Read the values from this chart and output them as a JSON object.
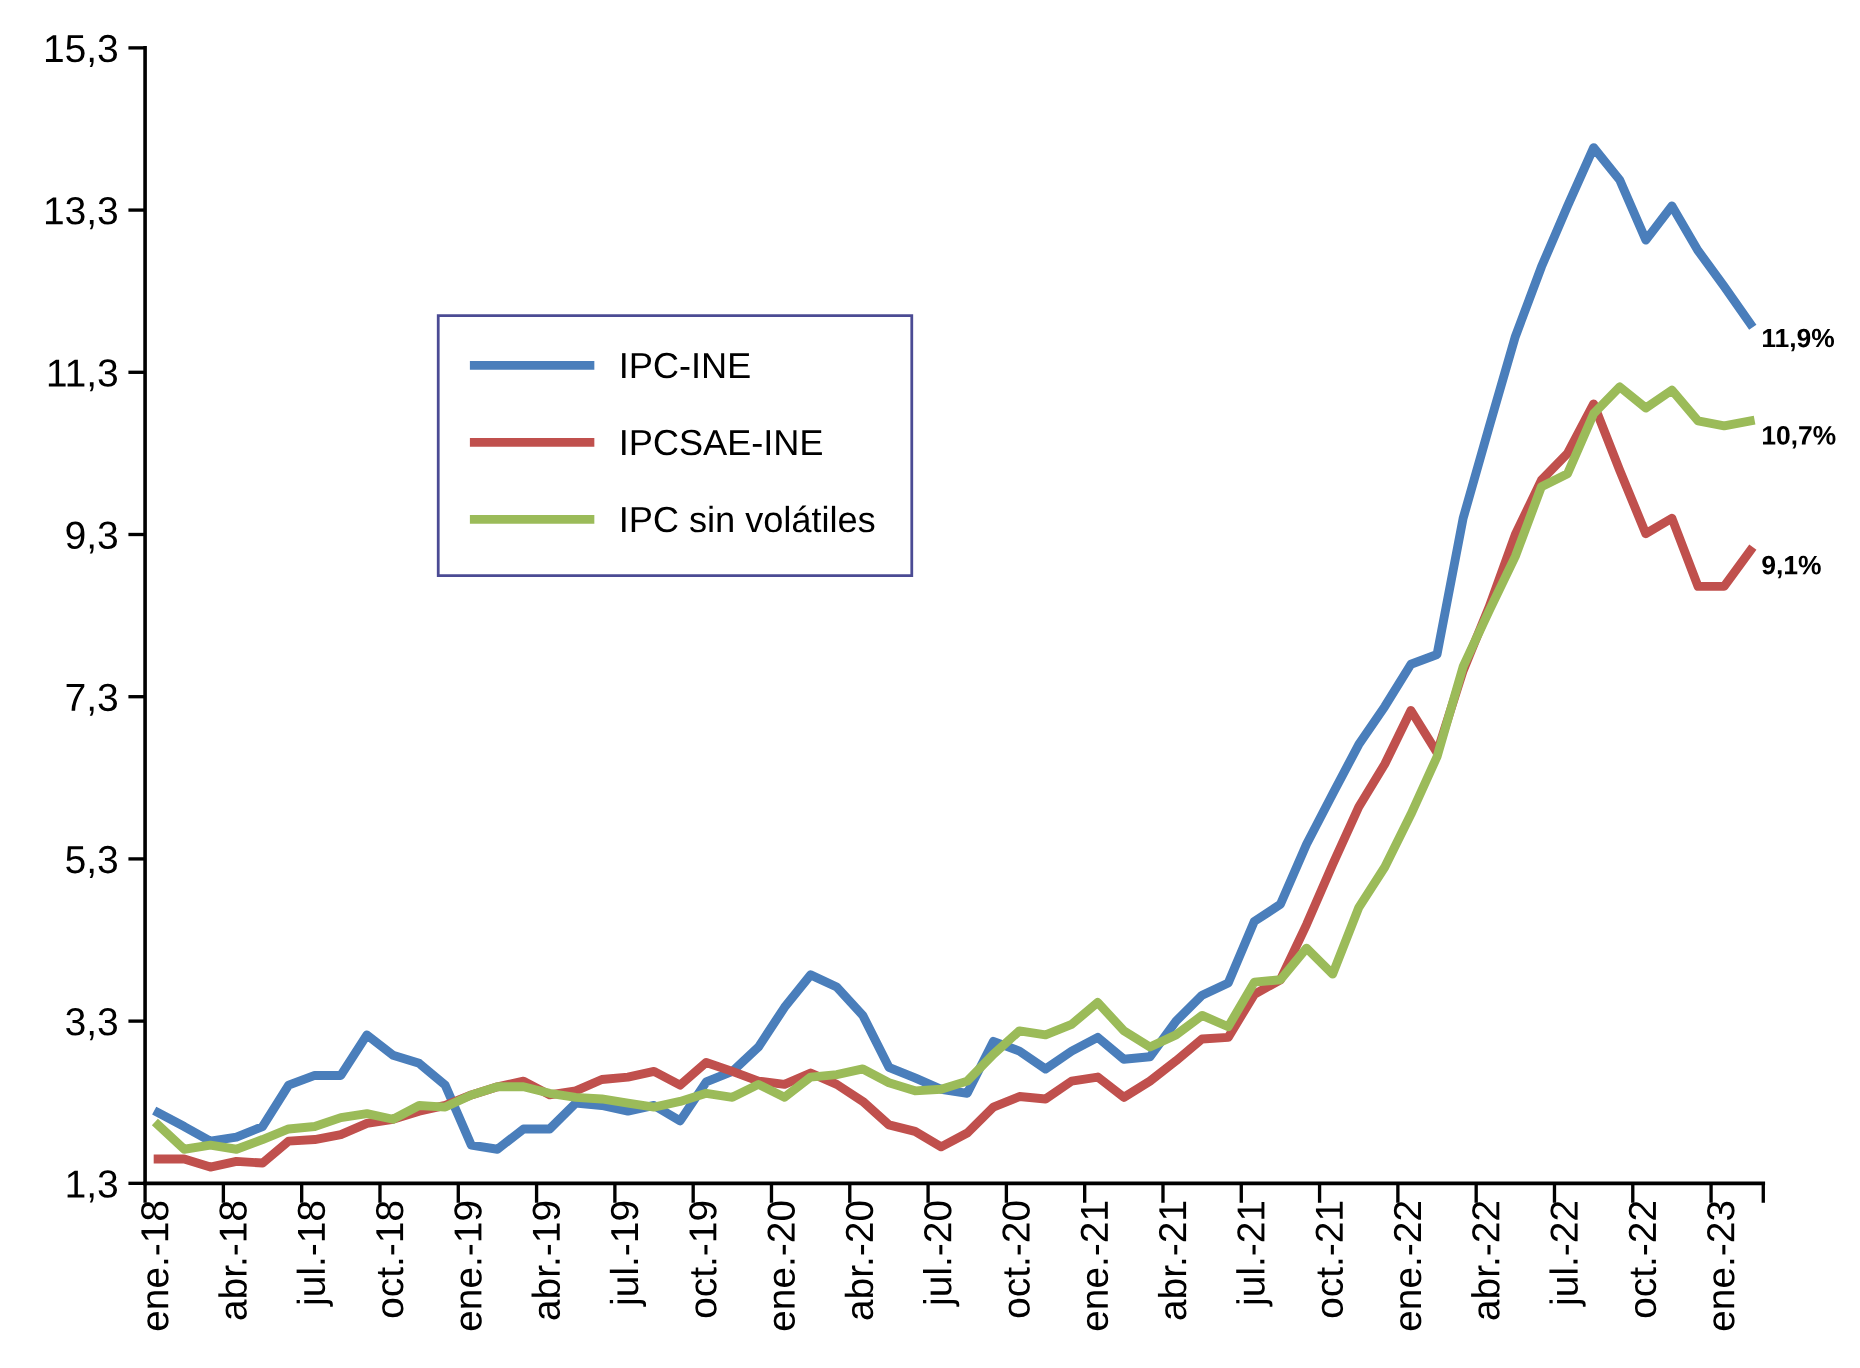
{
  "chart_data": {
    "type": "line",
    "categories": [
      "ene.-18",
      null,
      null,
      "abr.-18",
      null,
      null,
      "jul.-18",
      null,
      null,
      "oct.-18",
      null,
      null,
      "ene.-19",
      null,
      null,
      "abr.-19",
      null,
      null,
      "jul.-19",
      null,
      null,
      "oct.-19",
      null,
      null,
      "ene.-20",
      null,
      null,
      "abr.-20",
      null,
      null,
      "jul.-20",
      null,
      null,
      "oct.-20",
      null,
      null,
      "ene.-21",
      null,
      null,
      "abr.-21",
      null,
      null,
      "jul.-21",
      null,
      null,
      "oct.-21",
      null,
      null,
      "ene.-22",
      null,
      null,
      "abr.-22",
      null,
      null,
      "jul.-22",
      null,
      null,
      "oct.-22",
      null,
      null,
      "ene.-23",
      null
    ],
    "series": [
      {
        "name": "IPC-INE",
        "color": "#4a7ebb",
        "values": [
          2.17,
          2.0,
          1.82,
          1.87,
          2.0,
          2.51,
          2.63,
          2.63,
          3.13,
          2.88,
          2.78,
          2.51,
          1.77,
          1.72,
          1.97,
          1.97,
          2.29,
          2.26,
          2.19,
          2.26,
          2.07,
          2.55,
          2.68,
          2.98,
          3.47,
          3.87,
          3.72,
          3.37,
          2.73,
          2.6,
          2.46,
          2.41,
          3.05,
          2.93,
          2.71,
          2.93,
          3.1,
          2.83,
          2.86,
          3.3,
          3.62,
          3.77,
          4.53,
          4.74,
          5.48,
          6.1,
          6.71,
          7.18,
          7.7,
          7.82,
          9.5,
          10.63,
          11.74,
          12.6,
          13.35,
          14.07,
          13.67,
          12.93,
          13.35,
          12.8,
          12.36,
          11.9
        ],
        "value_labels": [
          null,
          null,
          null,
          null,
          null,
          null,
          null,
          null,
          null,
          null,
          null,
          null,
          null,
          null,
          null,
          null,
          null,
          null,
          null,
          null,
          null,
          null,
          null,
          null,
          null,
          null,
          null,
          null,
          null,
          null,
          null,
          null,
          null,
          null,
          null,
          null,
          null,
          null,
          null,
          null,
          null,
          null,
          null,
          null,
          null,
          null,
          null,
          null,
          null,
          null,
          null,
          null,
          null,
          null,
          null,
          null,
          null,
          null,
          null,
          null,
          null,
          "11,9%"
        ]
      },
      {
        "name": "IPCSAE-INE",
        "color": "#c0504d",
        "values": [
          1.6,
          1.6,
          1.5,
          1.57,
          1.55,
          1.82,
          1.84,
          1.9,
          2.04,
          2.09,
          2.19,
          2.26,
          2.39,
          2.49,
          2.56,
          2.39,
          2.44,
          2.58,
          2.61,
          2.68,
          2.51,
          2.79,
          2.68,
          2.56,
          2.52,
          2.66,
          2.52,
          2.31,
          2.02,
          1.94,
          1.75,
          1.92,
          2.24,
          2.37,
          2.34,
          2.56,
          2.61,
          2.36,
          2.56,
          2.81,
          3.08,
          3.1,
          3.63,
          3.81,
          4.49,
          5.23,
          5.94,
          6.47,
          7.13,
          6.61,
          7.62,
          8.41,
          9.3,
          9.97,
          10.3,
          10.91,
          10.09,
          9.31,
          9.5,
          8.66,
          8.66,
          9.1
        ],
        "value_labels": [
          null,
          null,
          null,
          null,
          null,
          null,
          null,
          null,
          null,
          null,
          null,
          null,
          null,
          null,
          null,
          null,
          null,
          null,
          null,
          null,
          null,
          null,
          null,
          null,
          null,
          null,
          null,
          null,
          null,
          null,
          null,
          null,
          null,
          null,
          null,
          null,
          null,
          null,
          null,
          null,
          null,
          null,
          null,
          null,
          null,
          null,
          null,
          null,
          null,
          null,
          null,
          null,
          null,
          null,
          null,
          null,
          null,
          null,
          null,
          null,
          null,
          "9,1%"
        ]
      },
      {
        "name": "IPC sin volátiles",
        "color": "#9bbb59",
        "values": [
          2.02,
          1.72,
          1.77,
          1.72,
          1.84,
          1.97,
          2.0,
          2.11,
          2.16,
          2.09,
          2.26,
          2.24,
          2.39,
          2.49,
          2.49,
          2.41,
          2.36,
          2.34,
          2.29,
          2.24,
          2.31,
          2.41,
          2.36,
          2.52,
          2.36,
          2.61,
          2.64,
          2.71,
          2.54,
          2.44,
          2.46,
          2.56,
          2.89,
          3.18,
          3.13,
          3.26,
          3.53,
          3.18,
          2.98,
          3.13,
          3.37,
          3.23,
          3.78,
          3.81,
          4.2,
          3.88,
          4.7,
          5.2,
          5.85,
          6.56,
          7.67,
          8.36,
          9.03,
          9.89,
          10.05,
          10.79,
          11.12,
          10.86,
          11.08,
          10.7,
          10.64,
          10.7
        ],
        "value_labels": [
          null,
          null,
          null,
          null,
          null,
          null,
          null,
          null,
          null,
          null,
          null,
          null,
          null,
          null,
          null,
          null,
          null,
          null,
          null,
          null,
          null,
          null,
          null,
          null,
          null,
          null,
          null,
          null,
          null,
          null,
          null,
          null,
          null,
          null,
          null,
          null,
          null,
          null,
          null,
          null,
          null,
          null,
          null,
          null,
          null,
          null,
          null,
          null,
          null,
          null,
          null,
          null,
          null,
          null,
          null,
          null,
          null,
          null,
          null,
          null,
          null,
          "10,7%"
        ]
      }
    ],
    "ylim": [
      1.3,
      15.3
    ],
    "yticks": [
      {
        "value": 1.3,
        "label": "1,3"
      },
      {
        "value": 3.3,
        "label": "3,3"
      },
      {
        "value": 5.3,
        "label": "5,3"
      },
      {
        "value": 7.3,
        "label": "7,3"
      },
      {
        "value": 9.3,
        "label": "9,3"
      },
      {
        "value": 11.3,
        "label": "11,3"
      },
      {
        "value": 13.3,
        "label": "13,3"
      },
      {
        "value": 15.3,
        "label": "15,3"
      }
    ],
    "grid": false,
    "legend": "top left",
    "marker": "none",
    "line_style": "solid"
  }
}
